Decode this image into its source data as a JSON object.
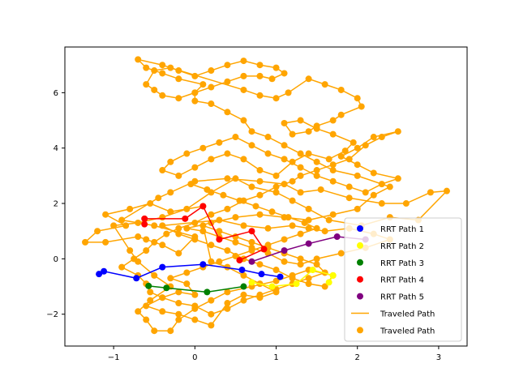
{
  "chart_data": {
    "type": "scatter",
    "title": "",
    "xlabel": "",
    "ylabel": "",
    "xlim": [
      -1.6,
      3.35
    ],
    "ylim": [
      -3.15,
      7.65
    ],
    "xticks": [
      -1,
      0,
      1,
      2,
      3
    ],
    "yticks": [
      -2,
      0,
      2,
      4,
      6
    ],
    "grid": false,
    "legend_position": "lower right",
    "series": [
      {
        "name": "RRT Path 1",
        "style": "line+points",
        "color": "#0000ff",
        "points": [
          [
            -1.18,
            -0.55
          ],
          [
            -1.12,
            -0.45
          ],
          [
            -0.72,
            -0.7
          ],
          [
            -0.4,
            -0.3
          ],
          [
            0.1,
            -0.2
          ],
          [
            0.58,
            -0.4
          ],
          [
            0.82,
            -0.55
          ],
          [
            1.05,
            -0.65
          ]
        ]
      },
      {
        "name": "RRT Path 2",
        "style": "line+points",
        "color": "#ffff00",
        "points": [
          [
            0.7,
            -0.85
          ],
          [
            0.95,
            -1.0
          ],
          [
            1.25,
            -0.9
          ],
          [
            1.45,
            -0.4
          ],
          [
            1.7,
            -0.6
          ],
          [
            1.65,
            -0.85
          ]
        ]
      },
      {
        "name": "RRT Path 3",
        "style": "line+points",
        "color": "#008000",
        "points": [
          [
            -0.57,
            -0.98
          ],
          [
            -0.35,
            -1.05
          ],
          [
            0.15,
            -1.2
          ],
          [
            0.6,
            -1.0
          ]
        ]
      },
      {
        "name": "RRT Path 4",
        "style": "line+points",
        "color": "#ff0000",
        "points": [
          [
            -0.62,
            1.25
          ],
          [
            -0.62,
            1.45
          ],
          [
            -0.12,
            1.45
          ],
          [
            0.1,
            1.9
          ],
          [
            0.3,
            0.7
          ],
          [
            0.7,
            1.0
          ],
          [
            0.85,
            0.35
          ],
          [
            0.55,
            -0.05
          ]
        ]
      },
      {
        "name": "RRT Path 5",
        "style": "line+points",
        "color": "#800080",
        "points": [
          [
            0.7,
            -0.1
          ],
          [
            1.1,
            0.3
          ],
          [
            1.4,
            0.55
          ],
          [
            1.75,
            0.8
          ],
          [
            2.1,
            0.7
          ]
        ]
      },
      {
        "name": "Traveled Path",
        "style": "line",
        "color": "#ffa500",
        "legend_marker": "line",
        "ref": "traveled"
      },
      {
        "name": "Traveled Path",
        "style": "points",
        "color": "#ffa500",
        "legend_marker": "dot",
        "ref": "traveled"
      }
    ],
    "traveled_path": [
      [
        0.1,
        1.9
      ],
      [
        -0.3,
        1.7
      ],
      [
        -0.55,
        2.0
      ],
      [
        -0.8,
        1.8
      ],
      [
        -1.1,
        1.6
      ],
      [
        -0.85,
        1.2
      ],
      [
        -1.2,
        1.0
      ],
      [
        -1.35,
        0.6
      ],
      [
        -1.1,
        0.6
      ],
      [
        -0.7,
        0.8
      ],
      [
        -0.6,
        0.7
      ],
      [
        -0.4,
        0.5
      ],
      [
        -0.2,
        0.2
      ],
      [
        0.0,
        0.8
      ],
      [
        -0.5,
        1.2
      ],
      [
        -0.9,
        1.4
      ],
      [
        -0.45,
        2.2
      ],
      [
        -0.3,
        2.4
      ],
      [
        0.0,
        2.8
      ],
      [
        0.4,
        2.9
      ],
      [
        0.8,
        2.8
      ],
      [
        1.1,
        2.7
      ],
      [
        1.3,
        2.4
      ],
      [
        1.55,
        2.5
      ],
      [
        1.9,
        2.2
      ],
      [
        2.3,
        2.0
      ],
      [
        2.6,
        2.0
      ],
      [
        2.9,
        2.4
      ],
      [
        3.1,
        2.45
      ],
      [
        2.75,
        1.4
      ],
      [
        2.4,
        1.5
      ],
      [
        2.05,
        1.2
      ],
      [
        1.65,
        1.4
      ],
      [
        1.4,
        1.8
      ],
      [
        1.2,
        2.1
      ],
      [
        1.0,
        2.4
      ],
      [
        0.7,
        2.6
      ],
      [
        0.5,
        2.9
      ],
      [
        0.2,
        2.4
      ],
      [
        -0.1,
        1.8
      ],
      [
        -0.4,
        1.5
      ],
      [
        -0.7,
        1.3
      ],
      [
        -1.0,
        1.2
      ],
      [
        -0.8,
        0.3
      ],
      [
        -0.7,
        -0.1
      ],
      [
        -0.5,
        -0.6
      ],
      [
        -0.3,
        -1.0
      ],
      [
        -0.55,
        -1.5
      ],
      [
        -0.7,
        -1.9
      ],
      [
        -0.6,
        -2.2
      ],
      [
        -0.5,
        -2.6
      ],
      [
        -0.3,
        -2.6
      ],
      [
        -0.2,
        -2.2
      ],
      [
        0.0,
        -1.8
      ],
      [
        0.2,
        -1.5
      ],
      [
        0.4,
        -1.2
      ],
      [
        0.7,
        -1.0
      ],
      [
        1.0,
        -0.8
      ],
      [
        1.2,
        -0.6
      ],
      [
        1.4,
        -0.4
      ],
      [
        1.7,
        -0.6
      ],
      [
        1.6,
        -1.0
      ],
      [
        1.4,
        -0.9
      ],
      [
        1.2,
        -0.7
      ],
      [
        1.0,
        -0.4
      ],
      [
        0.8,
        -0.2
      ],
      [
        0.6,
        0.0
      ],
      [
        0.4,
        0.3
      ],
      [
        0.2,
        0.5
      ],
      [
        0.0,
        0.7
      ],
      [
        -0.2,
        0.9
      ],
      [
        -0.4,
        1.2
      ],
      [
        0.3,
        1.4
      ],
      [
        0.6,
        1.2
      ],
      [
        0.9,
        1.1
      ],
      [
        1.2,
        1.2
      ],
      [
        1.4,
        1.1
      ],
      [
        1.6,
        1.0
      ],
      [
        1.9,
        1.1
      ],
      [
        2.2,
        0.9
      ],
      [
        2.4,
        0.7
      ],
      [
        2.1,
        0.4
      ],
      [
        1.8,
        0.2
      ],
      [
        1.5,
        0.0
      ],
      [
        1.3,
        -0.2
      ],
      [
        1.1,
        -0.1
      ],
      [
        0.9,
        0.2
      ],
      [
        0.7,
        0.4
      ],
      [
        0.5,
        0.6
      ],
      [
        0.3,
        0.8
      ],
      [
        0.1,
        1.0
      ],
      [
        -0.1,
        1.1
      ],
      [
        0.2,
        1.3
      ],
      [
        0.5,
        1.5
      ],
      [
        0.8,
        1.6
      ],
      [
        1.1,
        1.5
      ],
      [
        1.4,
        1.4
      ],
      [
        1.7,
        1.6
      ],
      [
        2.0,
        1.8
      ],
      [
        2.2,
        2.3
      ],
      [
        2.4,
        2.6
      ],
      [
        2.0,
        3.0
      ],
      [
        1.7,
        3.2
      ],
      [
        1.5,
        3.5
      ],
      [
        1.3,
        3.8
      ],
      [
        1.1,
        4.1
      ],
      [
        0.9,
        4.4
      ],
      [
        0.7,
        4.6
      ],
      [
        0.6,
        5.0
      ],
      [
        0.4,
        5.3
      ],
      [
        0.2,
        5.6
      ],
      [
        0.0,
        5.7
      ],
      [
        0.0,
        6.0
      ],
      [
        0.1,
        6.3
      ],
      [
        -0.2,
        6.5
      ],
      [
        -0.4,
        6.7
      ],
      [
        -0.6,
        6.9
      ],
      [
        -0.7,
        7.2
      ],
      [
        -0.4,
        7.0
      ],
      [
        -0.2,
        6.8
      ],
      [
        0.0,
        6.6
      ],
      [
        0.2,
        6.8
      ],
      [
        0.4,
        7.0
      ],
      [
        0.6,
        7.15
      ],
      [
        0.8,
        7.0
      ],
      [
        1.0,
        6.9
      ],
      [
        1.1,
        6.7
      ],
      [
        0.95,
        6.5
      ],
      [
        0.8,
        6.6
      ],
      [
        0.6,
        6.6
      ],
      [
        0.4,
        6.4
      ],
      [
        0.2,
        6.2
      ],
      [
        0.0,
        6.0
      ],
      [
        -0.2,
        5.8
      ],
      [
        -0.4,
        5.9
      ],
      [
        -0.5,
        6.1
      ],
      [
        -0.6,
        6.3
      ],
      [
        -0.5,
        6.8
      ],
      [
        -0.3,
        6.9
      ],
      [
        0.6,
        6.1
      ],
      [
        0.8,
        5.9
      ],
      [
        1.0,
        5.8
      ],
      [
        1.15,
        6.0
      ],
      [
        1.4,
        6.5
      ],
      [
        1.6,
        6.3
      ],
      [
        1.8,
        6.1
      ],
      [
        2.0,
        5.8
      ],
      [
        2.05,
        5.5
      ],
      [
        1.8,
        5.2
      ],
      [
        1.7,
        5.0
      ],
      [
        1.5,
        4.8
      ],
      [
        1.4,
        4.6
      ],
      [
        1.2,
        4.5
      ],
      [
        1.1,
        4.9
      ],
      [
        1.3,
        5.0
      ],
      [
        1.5,
        4.7
      ],
      [
        1.7,
        4.5
      ],
      [
        1.95,
        4.2
      ],
      [
        1.85,
        3.9
      ],
      [
        1.65,
        3.6
      ],
      [
        1.4,
        3.8
      ],
      [
        1.2,
        3.5
      ],
      [
        1.0,
        3.0
      ],
      [
        0.8,
        3.2
      ],
      [
        0.6,
        3.6
      ],
      [
        0.4,
        3.8
      ],
      [
        0.2,
        3.6
      ],
      [
        0.0,
        3.3
      ],
      [
        -0.2,
        3.0
      ],
      [
        -0.4,
        3.2
      ],
      [
        -0.3,
        3.5
      ],
      [
        -0.1,
        3.8
      ],
      [
        0.1,
        4.0
      ],
      [
        0.3,
        4.2
      ],
      [
        0.5,
        4.4
      ],
      [
        0.7,
        4.1
      ],
      [
        0.9,
        3.8
      ],
      [
        1.1,
        3.6
      ],
      [
        1.3,
        3.3
      ],
      [
        1.5,
        3.0
      ],
      [
        1.7,
        2.8
      ],
      [
        1.9,
        2.6
      ],
      [
        2.1,
        2.4
      ],
      [
        2.3,
        2.7
      ],
      [
        2.5,
        2.9
      ],
      [
        2.2,
        3.1
      ],
      [
        2.0,
        3.4
      ],
      [
        1.8,
        3.7
      ],
      [
        2.0,
        4.0
      ],
      [
        2.2,
        4.4
      ],
      [
        2.5,
        4.6
      ],
      [
        2.3,
        4.4
      ],
      [
        2.1,
        4.1
      ],
      [
        1.9,
        3.6
      ],
      [
        1.7,
        3.4
      ],
      [
        1.5,
        3.2
      ],
      [
        1.3,
        3.0
      ],
      [
        1.2,
        2.8
      ],
      [
        1.0,
        2.6
      ],
      [
        0.8,
        2.3
      ],
      [
        0.6,
        2.1
      ],
      [
        0.4,
        1.8
      ],
      [
        0.2,
        1.6
      ],
      [
        0.0,
        1.3
      ],
      [
        -0.2,
        1.1
      ],
      [
        -0.35,
        0.9
      ],
      [
        -0.5,
        0.6
      ],
      [
        -0.6,
        0.3
      ],
      [
        -0.75,
        0.0
      ],
      [
        -0.9,
        -0.3
      ],
      [
        -0.7,
        -0.6
      ],
      [
        -0.6,
        -0.9
      ],
      [
        -0.55,
        -1.2
      ],
      [
        -0.4,
        -1.4
      ],
      [
        -0.2,
        -1.6
      ],
      [
        0.0,
        -1.7
      ],
      [
        0.2,
        -2.0
      ],
      [
        0.4,
        -1.8
      ],
      [
        0.6,
        -1.5
      ],
      [
        0.8,
        -1.3
      ],
      [
        1.0,
        -1.1
      ],
      [
        1.2,
        -0.9
      ],
      [
        1.4,
        -0.7
      ],
      [
        1.6,
        -0.5
      ],
      [
        1.5,
        -0.2
      ],
      [
        1.3,
        0.0
      ],
      [
        1.1,
        0.2
      ],
      [
        0.9,
        0.4
      ],
      [
        0.7,
        0.6
      ],
      [
        0.5,
        0.8
      ],
      [
        0.3,
        1.0
      ],
      [
        0.1,
        1.2
      ],
      [
        0.2,
        -0.1
      ],
      [
        0.4,
        -0.3
      ],
      [
        0.6,
        -0.6
      ],
      [
        0.8,
        -0.9
      ],
      [
        1.0,
        -1.2
      ],
      [
        0.8,
        -1.4
      ],
      [
        0.6,
        -1.3
      ],
      [
        0.4,
        -1.6
      ],
      [
        0.2,
        -2.4
      ],
      [
        0.0,
        -2.2
      ],
      [
        -0.2,
        -2.0
      ],
      [
        -0.4,
        -1.9
      ],
      [
        -0.6,
        -1.7
      ],
      [
        -0.4,
        -1.4
      ],
      [
        -0.2,
        -1.2
      ],
      [
        0.0,
        -1.3
      ],
      [
        -0.1,
        -0.9
      ],
      [
        -0.3,
        -0.7
      ],
      [
        -0.1,
        -0.5
      ],
      [
        0.1,
        -0.3
      ],
      [
        0.3,
        -0.1
      ],
      [
        0.5,
        0.1
      ],
      [
        0.7,
        0.3
      ],
      [
        0.9,
        0.5
      ],
      [
        1.1,
        0.7
      ],
      [
        1.3,
        0.9
      ],
      [
        1.5,
        1.1
      ],
      [
        1.35,
        1.3
      ],
      [
        1.15,
        1.5
      ],
      [
        0.95,
        1.7
      ],
      [
        0.75,
        1.9
      ],
      [
        0.55,
        2.1
      ],
      [
        0.35,
        2.3
      ],
      [
        0.15,
        2.5
      ],
      [
        -0.05,
        2.7
      ]
    ]
  }
}
